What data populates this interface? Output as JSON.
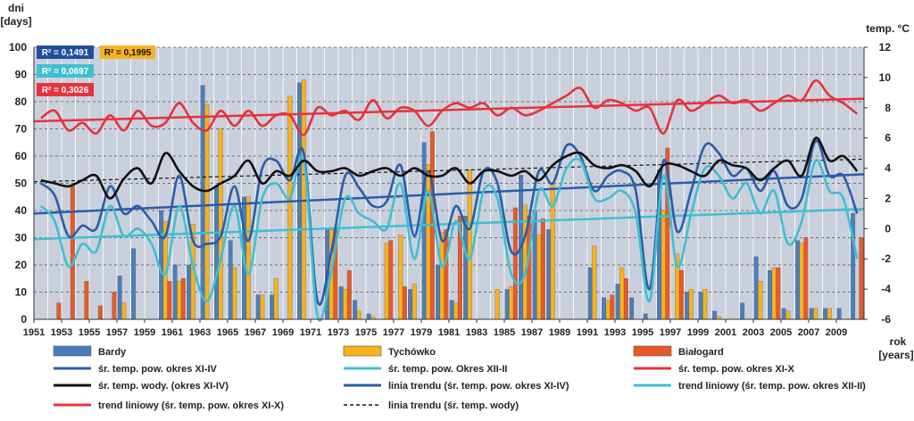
{
  "chart_data": {
    "type": "bar",
    "left_axis_label": [
      "dni",
      "[days]"
    ],
    "right_axis_label": "temp. °C",
    "x_axis_label": [
      "rok",
      "[years]"
    ],
    "ylim_left": [
      0,
      100
    ],
    "ylim_right": [
      -6,
      12
    ],
    "yticks_left": [
      0,
      10,
      20,
      30,
      40,
      50,
      60,
      70,
      80,
      90,
      100
    ],
    "yticks_right": [
      -6,
      -4,
      -2,
      0,
      2,
      4,
      6,
      8,
      10,
      12
    ],
    "years": [
      1951,
      1952,
      1953,
      1954,
      1955,
      1956,
      1957,
      1958,
      1959,
      1960,
      1961,
      1962,
      1963,
      1964,
      1965,
      1966,
      1967,
      1968,
      1969,
      1970,
      1971,
      1972,
      1973,
      1974,
      1975,
      1976,
      1977,
      1978,
      1979,
      1980,
      1981,
      1982,
      1983,
      1984,
      1985,
      1986,
      1987,
      1988,
      1989,
      1990,
      1991,
      1992,
      1993,
      1994,
      1995,
      1996,
      1997,
      1998,
      1999,
      2000,
      2001,
      2002,
      2003,
      2004,
      2005,
      2006,
      2007,
      2008,
      2009,
      2010
    ],
    "xtick_labels": [
      "1951",
      "1953",
      "1955",
      "1957",
      "1959",
      "1961",
      "1963",
      "1965",
      "1967",
      "1969",
      "1971",
      "1973",
      "1975",
      "1977",
      "1979",
      "1981",
      "1983",
      "1985",
      "1987",
      "1989",
      "1991",
      "1993",
      "1995",
      "1997",
      "1999",
      "2001",
      "2003",
      "2005",
      "2007",
      "2009"
    ],
    "grid": true,
    "bar_series": [
      {
        "name": "Bardy",
        "color": "#4a7ebb",
        "values": [
          0,
          0,
          0,
          0,
          0,
          0,
          16,
          26,
          0,
          40,
          20,
          20,
          86,
          49,
          29,
          45,
          9,
          9,
          0,
          87,
          0,
          33,
          12,
          7,
          2,
          0,
          0,
          11,
          65,
          20,
          7,
          38,
          0,
          0,
          11,
          53,
          40,
          33,
          0,
          0,
          19,
          8,
          13,
          8,
          2,
          55,
          0,
          10,
          10,
          3,
          0,
          6,
          23,
          18,
          4,
          29,
          4,
          4,
          4,
          39
        ]
      },
      {
        "name": "Tychówko",
        "color": "#f7b21d",
        "values": [
          0,
          0,
          0,
          0,
          0,
          0,
          6,
          0,
          0,
          36,
          14,
          35,
          79,
          70,
          19,
          45,
          9,
          15,
          82,
          88,
          0,
          33,
          11,
          3,
          1,
          28,
          31,
          13,
          57,
          32,
          6,
          55,
          0,
          11,
          12,
          42,
          31,
          50,
          0,
          0,
          27,
          7,
          19,
          0,
          0,
          40,
          24,
          11,
          11,
          1,
          0,
          0,
          14,
          19,
          3,
          28,
          4,
          4,
          0,
          0
        ]
      },
      {
        "name": "Białogard",
        "color": "#e8592a",
        "values": [
          0,
          6,
          49,
          14,
          5,
          10,
          0,
          0,
          0,
          14,
          15,
          0,
          0,
          0,
          0,
          0,
          0,
          0,
          0,
          0,
          0,
          33,
          18,
          0,
          0,
          29,
          12,
          0,
          69,
          33,
          38,
          0,
          0,
          0,
          41,
          38,
          37,
          0,
          0,
          0,
          0,
          9,
          15,
          0,
          0,
          63,
          18,
          0,
          0,
          0,
          0,
          0,
          0,
          19,
          0,
          30,
          0,
          0,
          0,
          30
        ]
      }
    ],
    "line_series": [
      {
        "name": "śr. temp. pow. okres XI-IV",
        "color": "#2a5caa",
        "values": [
          3.0,
          2.2,
          -0.5,
          0.2,
          0.0,
          2.8,
          1.0,
          1.5,
          0.5,
          -0.5,
          3.5,
          -0.8,
          -1.0,
          -0.5,
          2.8,
          -0.8,
          4.0,
          4.5,
          3.2,
          5.0,
          -4.8,
          -1.5,
          3.5,
          2.7,
          1.5,
          1.8,
          4.2,
          -0.5,
          3.8,
          -0.8,
          1.5,
          0.0,
          3.8,
          3.0,
          -1.5,
          -0.5,
          3.8,
          3.0,
          5.5,
          4.8,
          2.5,
          3.5,
          3.8,
          2.5,
          -4.0,
          4.5,
          -0.2,
          2.5,
          5.5,
          5.0,
          3.5,
          4.0,
          2.5,
          3.8,
          1.5,
          2.0,
          5.8,
          3.5,
          3.5,
          1.0
        ]
      },
      {
        "name": "śr. temp. pow. Okres XII-II",
        "color": "#3fbfd1",
        "values": [
          1.5,
          0.5,
          -2.5,
          -1.0,
          -1.5,
          1.5,
          -0.5,
          0.0,
          -1.0,
          -3.0,
          1.5,
          -2.5,
          -4.8,
          -2.0,
          1.5,
          -3.0,
          2.0,
          3.0,
          2.0,
          4.5,
          -5.8,
          -2.8,
          2.0,
          1.0,
          0.5,
          0.0,
          3.0,
          -2.0,
          2.5,
          -2.5,
          0.5,
          -2.0,
          2.5,
          2.0,
          -3.0,
          -3.0,
          2.5,
          1.5,
          4.0,
          4.5,
          2.0,
          2.0,
          2.5,
          1.0,
          -4.8,
          3.5,
          -2.5,
          1.0,
          4.0,
          3.5,
          2.0,
          3.0,
          1.0,
          2.5,
          -1.0,
          0.5,
          4.5,
          2.5,
          2.0,
          -2.0
        ]
      },
      {
        "name": "śr. temp. pow. okres XI-X",
        "color": "#e8323c",
        "values": [
          7.3,
          7.8,
          6.5,
          7.0,
          6.3,
          7.5,
          6.5,
          7.8,
          6.8,
          7.0,
          8.3,
          7.0,
          6.5,
          7.8,
          6.8,
          7.8,
          6.8,
          7.5,
          7.5,
          6.2,
          8.0,
          7.5,
          7.8,
          7.2,
          8.5,
          7.3,
          8.0,
          7.8,
          6.8,
          7.8,
          8.3,
          8.0,
          8.3,
          7.5,
          8.0,
          7.5,
          7.8,
          8.3,
          8.8,
          9.3,
          8.0,
          8.5,
          8.3,
          7.8,
          8.0,
          6.3,
          8.5,
          7.8,
          8.3,
          8.8,
          8.3,
          8.5,
          7.8,
          8.3,
          8.8,
          8.5,
          9.8,
          8.8,
          8.3,
          7.6
        ]
      },
      {
        "name": "śr. temp. wody. (okres XI-IV)",
        "color": "#111111",
        "values": [
          3.2,
          3.0,
          2.8,
          3.2,
          3.5,
          2.0,
          3.3,
          4.0,
          3.0,
          5.0,
          3.8,
          2.8,
          2.5,
          3.0,
          3.5,
          4.5,
          3.0,
          3.8,
          3.5,
          4.5,
          3.8,
          3.8,
          4.0,
          3.5,
          3.8,
          4.0,
          3.5,
          4.0,
          3.5,
          3.5,
          4.0,
          3.0,
          3.8,
          3.8,
          3.5,
          3.8,
          3.2,
          4.2,
          4.8,
          5.0,
          4.2,
          4.0,
          4.2,
          3.8,
          2.8,
          4.2,
          4.2,
          3.8,
          3.5,
          4.5,
          4.2,
          4.0,
          3.2,
          4.0,
          4.5,
          3.5,
          6.0,
          4.5,
          4.8,
          3.8
        ]
      }
    ],
    "trend_lines": [
      {
        "name": "linia trendu (śr. temp. pow. okres XI-IV)",
        "color": "#2a5caa",
        "from": 1.0,
        "to": 3.6,
        "dashed": false
      },
      {
        "name": "trend liniowy (śr. temp. pow. okres XII-II)",
        "color": "#3fbfd1",
        "from": -0.7,
        "to": 1.3,
        "dashed": false
      },
      {
        "name": "trend liniowy (śr. temp. pow. okres XI-X)",
        "color": "#e8323c",
        "from": 7.1,
        "to": 8.6,
        "dashed": false
      },
      {
        "name": "linia trendu (śr. temp. wody)",
        "color": "#111111",
        "from": 3.1,
        "to": 4.6,
        "dashed": true
      }
    ],
    "r2_boxes": [
      {
        "text": "R² = 0,1491",
        "bg": "#1f4e9c",
        "fg": "#ffffff"
      },
      {
        "text": "R² = 0,1995",
        "bg": "#f7b21d",
        "fg": "#111111"
      },
      {
        "text": "R² = 0,0697",
        "bg": "#3fbfd1",
        "fg": "#ffffff"
      },
      {
        "text": "R² = 0,3026",
        "bg": "#e8323c",
        "fg": "#ffffff"
      }
    ],
    "legend": [
      {
        "label": "Bardy",
        "kind": "box",
        "color": "#4a7ebb"
      },
      {
        "label": "Tychówko",
        "kind": "box",
        "color": "#f7b21d"
      },
      {
        "label": "Białogard",
        "kind": "box",
        "color": "#e8592a"
      },
      {
        "label": "śr. temp. pow. okres XI-IV",
        "kind": "line",
        "color": "#2a5caa"
      },
      {
        "label": "śr. temp. pow. Okres XII-II",
        "kind": "line",
        "color": "#3fbfd1"
      },
      {
        "label": "śr. temp. pow. okres XI-X",
        "kind": "line",
        "color": "#e8323c"
      },
      {
        "label": "śr. temp. wody. (okres XI-IV)",
        "kind": "line",
        "color": "#111111"
      },
      {
        "label": "linia trendu (śr. temp. pow. okres XI-IV)",
        "kind": "line",
        "color": "#2a5caa"
      },
      {
        "label": "trend liniowy (śr. temp. pow. okres XII-II)",
        "kind": "line",
        "color": "#3fbfd1"
      },
      {
        "label": "trend liniowy (śr. temp. pow. okres XI-X)",
        "kind": "line",
        "color": "#e8323c"
      },
      {
        "label": "linia trendu (śr. temp. wody)",
        "kind": "dash",
        "color": "#111111"
      }
    ]
  }
}
